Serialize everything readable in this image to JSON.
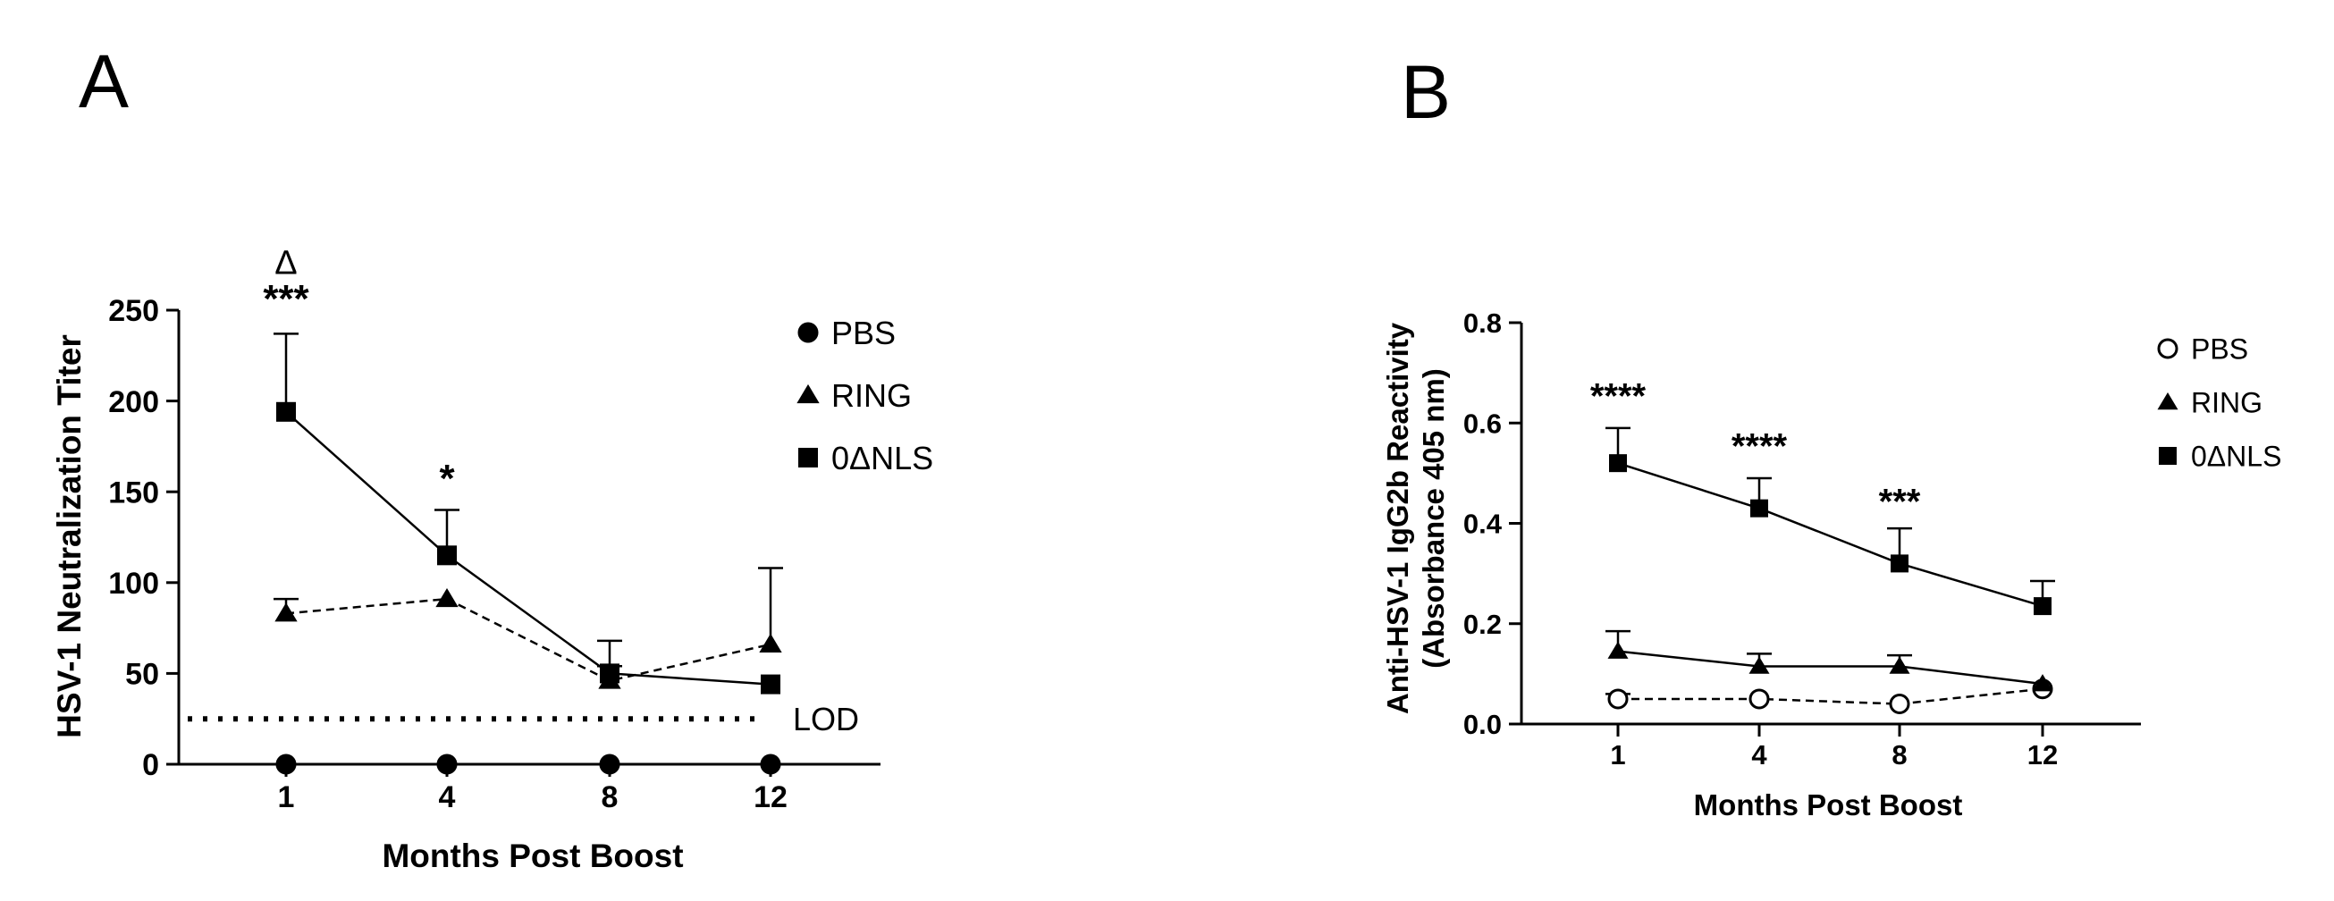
{
  "chart_data": [
    {
      "type": "line",
      "panel_label": "A",
      "xlabel": "Months Post Boost",
      "ylabel": "HSV-1 Neutralization Titer",
      "categories": [
        "1",
        "4",
        "8",
        "12"
      ],
      "ylim": [
        0,
        250
      ],
      "yticks": [
        0,
        50,
        100,
        150,
        200,
        250
      ],
      "grid": false,
      "legend_position": "top-right",
      "series": [
        {
          "name": "PBS",
          "marker": "circle-filled",
          "line": "solid",
          "values": [
            0,
            0,
            0,
            0
          ],
          "errors": [
            0,
            0,
            0,
            0
          ]
        },
        {
          "name": "RING",
          "marker": "triangle-filled",
          "line": "dashed",
          "values": [
            83,
            91,
            46,
            66
          ],
          "errors": [
            8,
            0,
            8,
            42
          ]
        },
        {
          "name": "0ΔNLS",
          "marker": "square-filled",
          "line": "solid",
          "values": [
            194,
            115,
            50,
            44
          ],
          "errors": [
            43,
            25,
            18,
            0
          ]
        }
      ],
      "reference_lines": [
        {
          "label": "LOD",
          "y": 25,
          "style": "dotted"
        }
      ],
      "annotations": [
        {
          "category": "1",
          "text": "***",
          "y": 249
        },
        {
          "category": "1",
          "text": "Δ",
          "y": 270
        },
        {
          "category": "4",
          "text": "*",
          "y": 150
        }
      ]
    },
    {
      "type": "line",
      "panel_label": "B",
      "xlabel": "Months Post Boost",
      "ylabel": [
        "Anti-HSV-1 IgG2b Reactivity",
        "(Absorbance 405 nm)"
      ],
      "categories": [
        "1",
        "4",
        "8",
        "12"
      ],
      "ylim": [
        0,
        0.8
      ],
      "yticks": [
        "0.0",
        "0.2",
        "0.4",
        "0.6",
        "0.8"
      ],
      "grid": false,
      "legend_position": "top-right",
      "series": [
        {
          "name": "PBS",
          "marker": "circle-open",
          "line": "dashed",
          "values": [
            0.05,
            0.05,
            0.04,
            0.07
          ],
          "errors": [
            0.01,
            0,
            0,
            0
          ]
        },
        {
          "name": "RING",
          "marker": "triangle-filled",
          "line": "solid",
          "values": [
            0.145,
            0.115,
            0.115,
            0.08
          ],
          "errors": [
            0.04,
            0.025,
            0.022,
            0
          ]
        },
        {
          "name": "0ΔNLS",
          "marker": "square-filled",
          "line": "solid",
          "values": [
            0.52,
            0.43,
            0.32,
            0.235
          ],
          "errors": [
            0.07,
            0.06,
            0.07,
            0.05
          ]
        }
      ],
      "annotations": [
        {
          "category": "1",
          "text": "****",
          "y": 0.63
        },
        {
          "category": "4",
          "text": "****",
          "y": 0.53
        },
        {
          "category": "8",
          "text": "***",
          "y": 0.42
        }
      ]
    }
  ]
}
